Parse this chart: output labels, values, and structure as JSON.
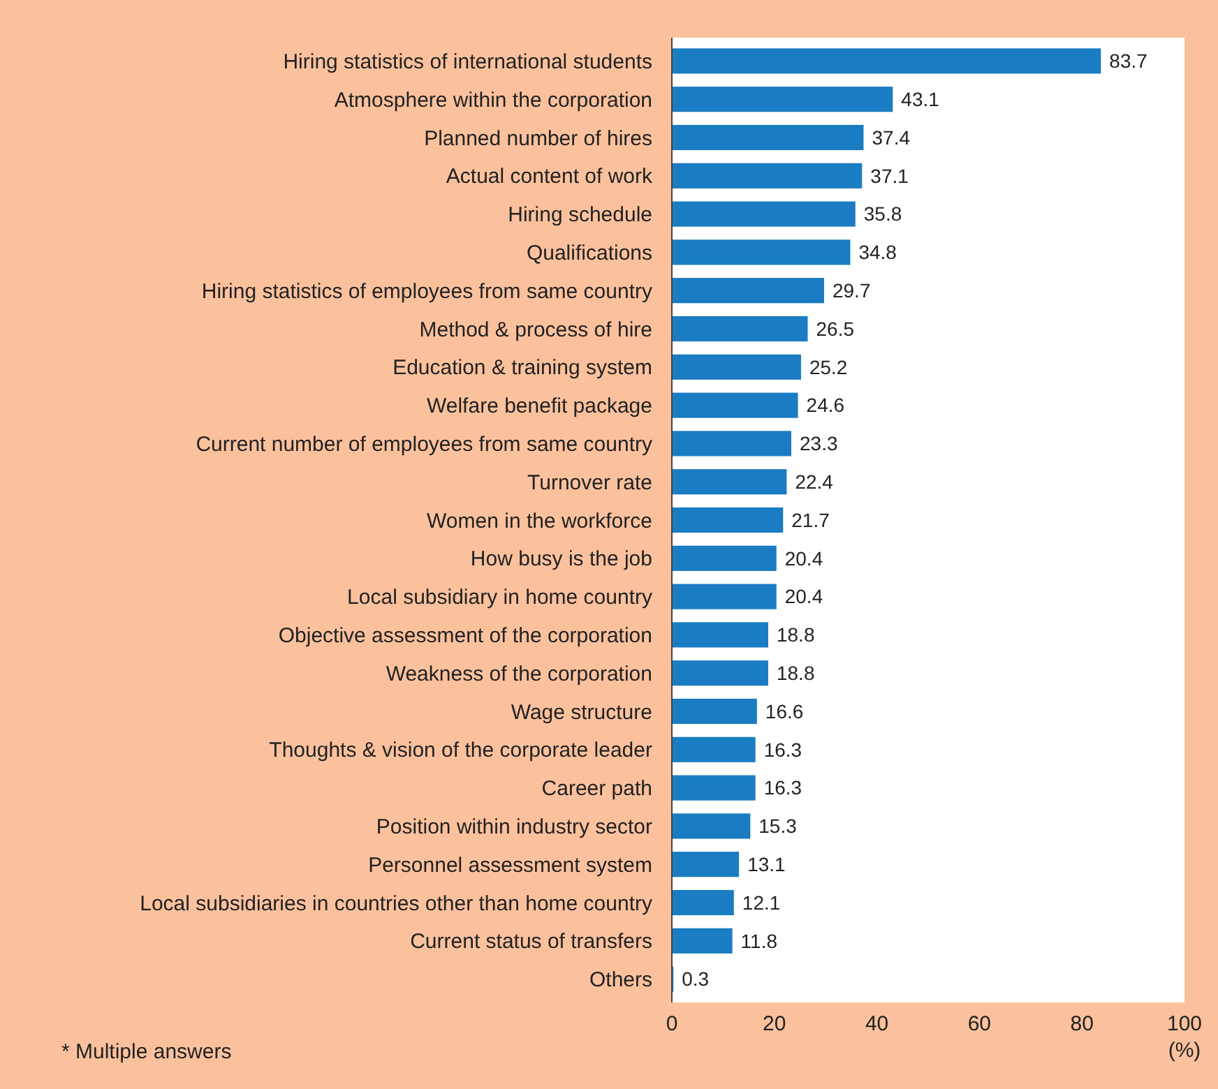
{
  "chart_data": {
    "type": "bar",
    "orientation": "horizontal",
    "categories": [
      "Hiring statistics of international students",
      "Atmosphere within the corporation",
      "Planned number of hires",
      "Actual content of work",
      "Hiring schedule",
      "Qualifications",
      "Hiring statistics of employees from same country",
      "Method & process of hire",
      "Education & training system",
      "Welfare benefit package",
      "Current number of employees from same country",
      "Turnover rate",
      "Women in the workforce",
      "How busy is the job",
      "Local subsidiary in home country",
      "Objective assessment of the corporation",
      "Weakness of the corporation",
      "Wage structure",
      "Thoughts & vision of the corporate leader",
      "Career path",
      "Position within industry sector",
      "Personnel assessment system",
      "Local subsidiaries in countries other than home country",
      "Current status of transfers",
      "Others"
    ],
    "values": [
      83.7,
      43.1,
      37.4,
      37.1,
      35.8,
      34.8,
      29.7,
      26.5,
      25.2,
      24.6,
      23.3,
      22.4,
      21.7,
      20.4,
      20.4,
      18.8,
      18.8,
      16.6,
      16.3,
      16.3,
      15.3,
      13.1,
      12.1,
      11.8,
      0.3
    ],
    "color": "#1a7cc2",
    "xlim": [
      0,
      100
    ],
    "xticks": [
      0,
      20,
      40,
      60,
      80,
      100
    ],
    "xlabel": "(%)",
    "data_labels": true,
    "grid": false,
    "annotations": [
      "* Multiple answers"
    ]
  }
}
